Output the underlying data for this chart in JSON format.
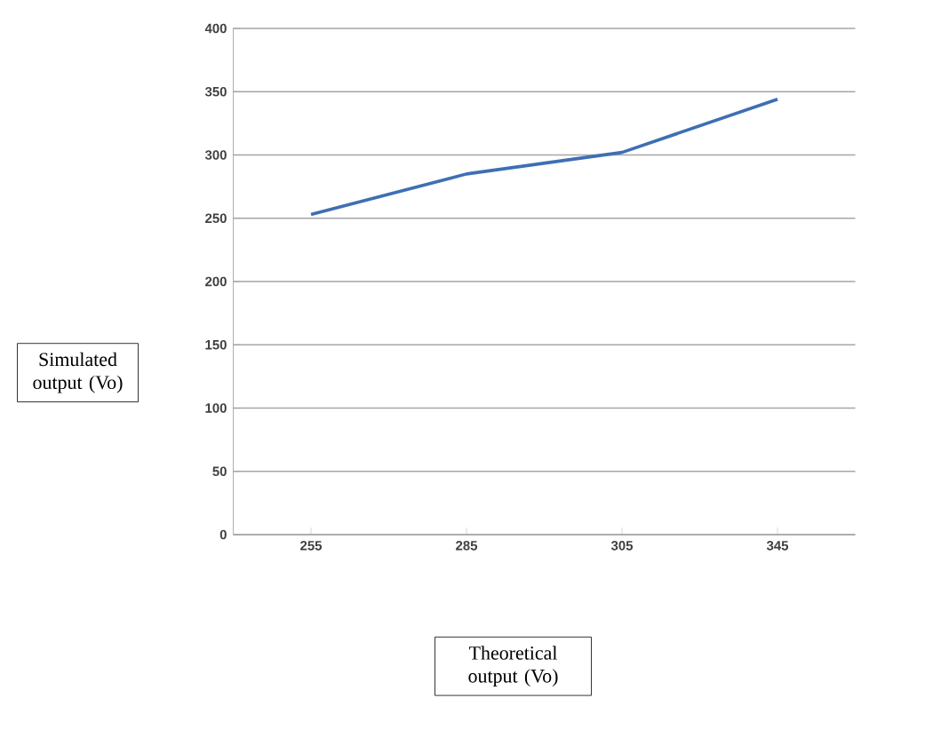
{
  "chart_data": {
    "type": "line",
    "xlabel": "Theoretical output (Vo)",
    "ylabel": "Simulated output (Vo)",
    "categories": [
      "255",
      "285",
      "305",
      "345"
    ],
    "series": [
      {
        "color": "#3e6fb5",
        "values": [
          253,
          285,
          302,
          344
        ]
      }
    ],
    "ylim": [
      0,
      400
    ],
    "yticks": [
      0,
      50,
      100,
      150,
      200,
      250,
      300,
      350,
      400
    ],
    "grid": "y",
    "marker": "none",
    "line_style": "solid"
  }
}
